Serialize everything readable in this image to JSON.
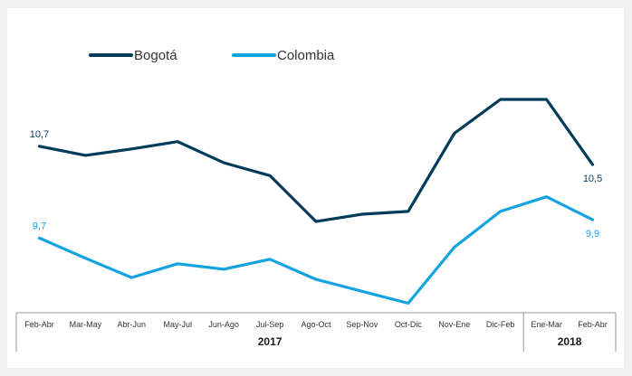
{
  "chart_data": {
    "type": "line",
    "categories": [
      "Feb-Abr",
      "Mar-May",
      "Abr-Jun",
      "May-Jul",
      "Jun-Ago",
      "Jul-Sep",
      "Ago-Oct",
      "Sep-Nov",
      "Oct-Dic",
      "Nov-Ene",
      "Dic-Feb",
      "Ene-Mar",
      "Feb-Abr"
    ],
    "year_groups": [
      {
        "label": "2017",
        "start": 0,
        "end": 10
      },
      {
        "label": "2018",
        "start": 11,
        "end": 12
      }
    ],
    "series": [
      {
        "name": "Bogotá",
        "color": "#003b5c",
        "values": [
          10.7,
          10.6,
          10.67,
          10.75,
          10.52,
          10.38,
          9.88,
          9.96,
          9.99,
          10.84,
          11.21,
          11.21,
          10.5
        ]
      },
      {
        "name": "Colombia",
        "color": "#13a3e0",
        "values": [
          9.7,
          9.48,
          9.27,
          9.42,
          9.36,
          9.47,
          9.25,
          9.12,
          8.99,
          9.6,
          9.99,
          10.15,
          9.9
        ]
      }
    ],
    "data_labels": [
      {
        "series": 0,
        "index": 0,
        "text": "10,7",
        "pos": "above"
      },
      {
        "series": 0,
        "index": 12,
        "text": "10,5",
        "pos": "below"
      },
      {
        "series": 1,
        "index": 0,
        "text": "9,7",
        "pos": "above"
      },
      {
        "series": 1,
        "index": 12,
        "text": "9,9",
        "pos": "below"
      }
    ],
    "ylim": [
      8.7,
      11.8
    ],
    "grid": false,
    "legend_position": "top-left"
  }
}
